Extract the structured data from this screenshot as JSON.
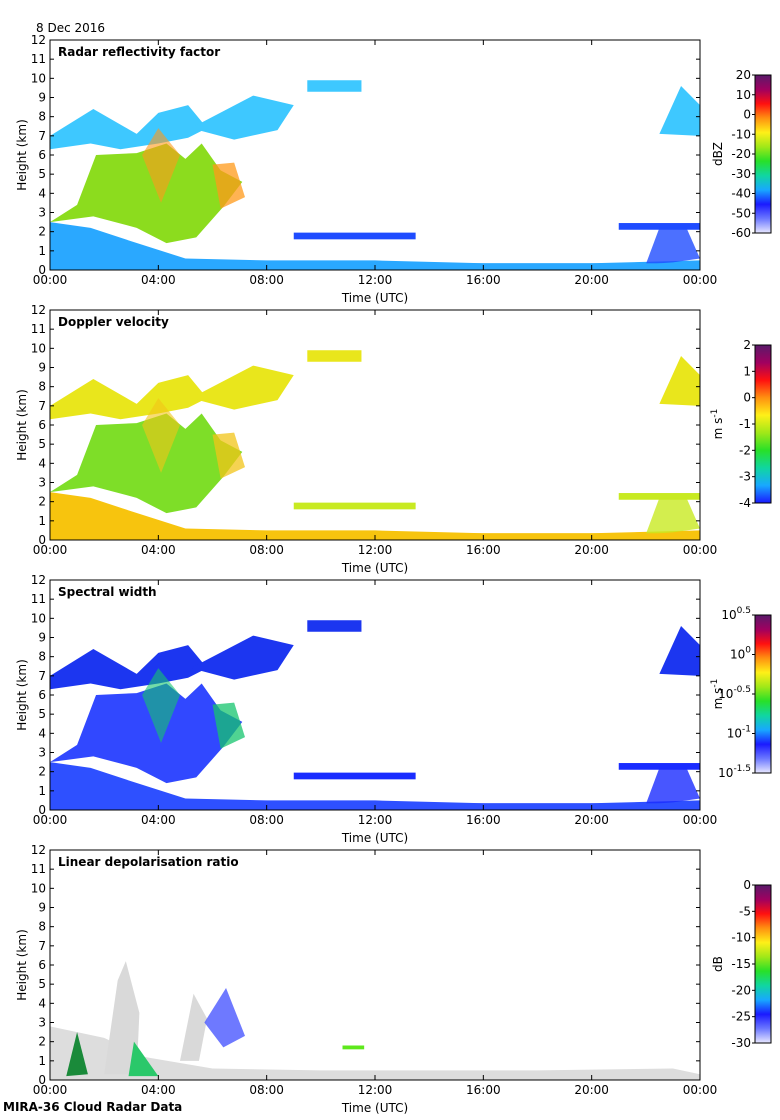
{
  "date": "8 Dec 2016",
  "footer": "MIRA-36 Cloud Radar Data",
  "chart_data": [
    {
      "type": "heatmap",
      "title": "Radar reflectivity factor",
      "xlabel": "Time (UTC)",
      "ylabel": "Height (km)",
      "x_ticks": [
        "00:00",
        "04:00",
        "08:00",
        "12:00",
        "16:00",
        "20:00",
        "00:00"
      ],
      "y_ticks": [
        0,
        1,
        2,
        3,
        4,
        5,
        6,
        7,
        8,
        9,
        10,
        11,
        12
      ],
      "ylim": [
        0,
        12
      ],
      "colorbar": {
        "unit": "dBZ",
        "ticks": [
          "20",
          "10",
          "0",
          "-10",
          "-20",
          "-30",
          "-40",
          "-50",
          "-60"
        ],
        "range": [
          -60,
          20
        ]
      }
    },
    {
      "type": "heatmap",
      "title": "Doppler velocity",
      "xlabel": "Time (UTC)",
      "ylabel": "Height (km)",
      "x_ticks": [
        "00:00",
        "04:00",
        "08:00",
        "12:00",
        "16:00",
        "20:00",
        "00:00"
      ],
      "y_ticks": [
        0,
        1,
        2,
        3,
        4,
        5,
        6,
        7,
        8,
        9,
        10,
        11,
        12
      ],
      "ylim": [
        0,
        12
      ],
      "colorbar": {
        "unit": "m s",
        "unit_sup": "-1",
        "ticks": [
          "2",
          "1",
          "0",
          "-1",
          "-2",
          "-3",
          "-4"
        ],
        "range": [
          -4,
          2
        ]
      }
    },
    {
      "type": "heatmap",
      "title": "Spectral width",
      "xlabel": "Time (UTC)",
      "ylabel": "Height (km)",
      "x_ticks": [
        "00:00",
        "04:00",
        "08:00",
        "12:00",
        "16:00",
        "20:00",
        "00:00"
      ],
      "y_ticks": [
        0,
        1,
        2,
        3,
        4,
        5,
        6,
        7,
        8,
        9,
        10,
        11,
        12
      ],
      "ylim": [
        0,
        12
      ],
      "colorbar": {
        "unit": "m s",
        "unit_sup": "-1",
        "log_scale": true,
        "ticks": [
          {
            "base": "10",
            "exp": "0.5"
          },
          {
            "base": "10",
            "exp": "0"
          },
          {
            "base": "10",
            "exp": "-0.5"
          },
          {
            "base": "10",
            "exp": "-1"
          },
          {
            "base": "10",
            "exp": "-1.5"
          }
        ],
        "range": [
          -1.5,
          0.5
        ]
      }
    },
    {
      "type": "heatmap",
      "title": "Linear depolarisation ratio",
      "xlabel": "Time (UTC)",
      "ylabel": "Height (km)",
      "x_ticks": [
        "00:00",
        "04:00",
        "08:00",
        "12:00",
        "16:00",
        "20:00",
        "00:00"
      ],
      "y_ticks": [
        0,
        1,
        2,
        3,
        4,
        5,
        6,
        7,
        8,
        9,
        10,
        11,
        12
      ],
      "ylim": [
        0,
        12
      ],
      "colorbar": {
        "unit": "dB",
        "ticks": [
          "0",
          "-5",
          "-10",
          "-15",
          "-20",
          "-25",
          "-30"
        ],
        "range": [
          -30,
          0
        ]
      }
    }
  ]
}
